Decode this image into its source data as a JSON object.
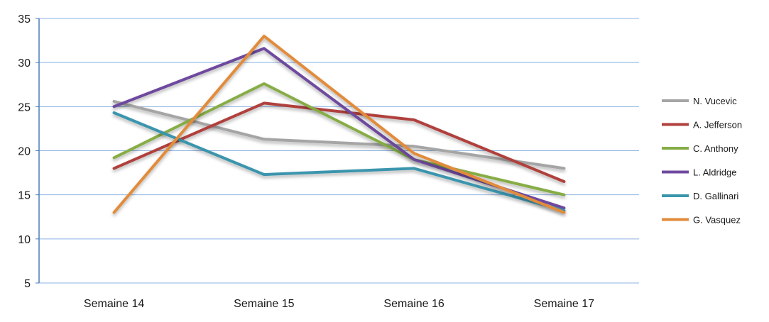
{
  "chart_data": {
    "type": "line",
    "title": "",
    "xlabel": "",
    "ylabel": "",
    "categories": [
      "Semaine 14",
      "Semaine 15",
      "Semaine 16",
      "Semaine 17"
    ],
    "ylim": [
      5,
      35
    ],
    "yticks": [
      5,
      10,
      15,
      20,
      25,
      30,
      35
    ],
    "grid": "horizontal",
    "legend_position": "right",
    "series": [
      {
        "name": "N. Vucevic",
        "color": "#a5a5a5",
        "values": [
          25.6,
          21.3,
          20.5,
          18.0
        ]
      },
      {
        "name": "A. Jefferson",
        "color": "#b0413e",
        "values": [
          18.0,
          25.4,
          23.5,
          16.5
        ]
      },
      {
        "name": "C. Anthony",
        "color": "#86ad45",
        "values": [
          19.2,
          27.6,
          19.0,
          15.0
        ]
      },
      {
        "name": "L. Aldridge",
        "color": "#6e4a9e",
        "values": [
          25.0,
          31.6,
          19.0,
          13.5
        ]
      },
      {
        "name": "D. Gallinari",
        "color": "#3a95ad",
        "values": [
          24.3,
          17.3,
          18.0,
          13.2
        ]
      },
      {
        "name": "G. Vasquez",
        "color": "#e28b3b",
        "values": [
          13.0,
          33.0,
          19.7,
          13.0
        ]
      }
    ]
  }
}
